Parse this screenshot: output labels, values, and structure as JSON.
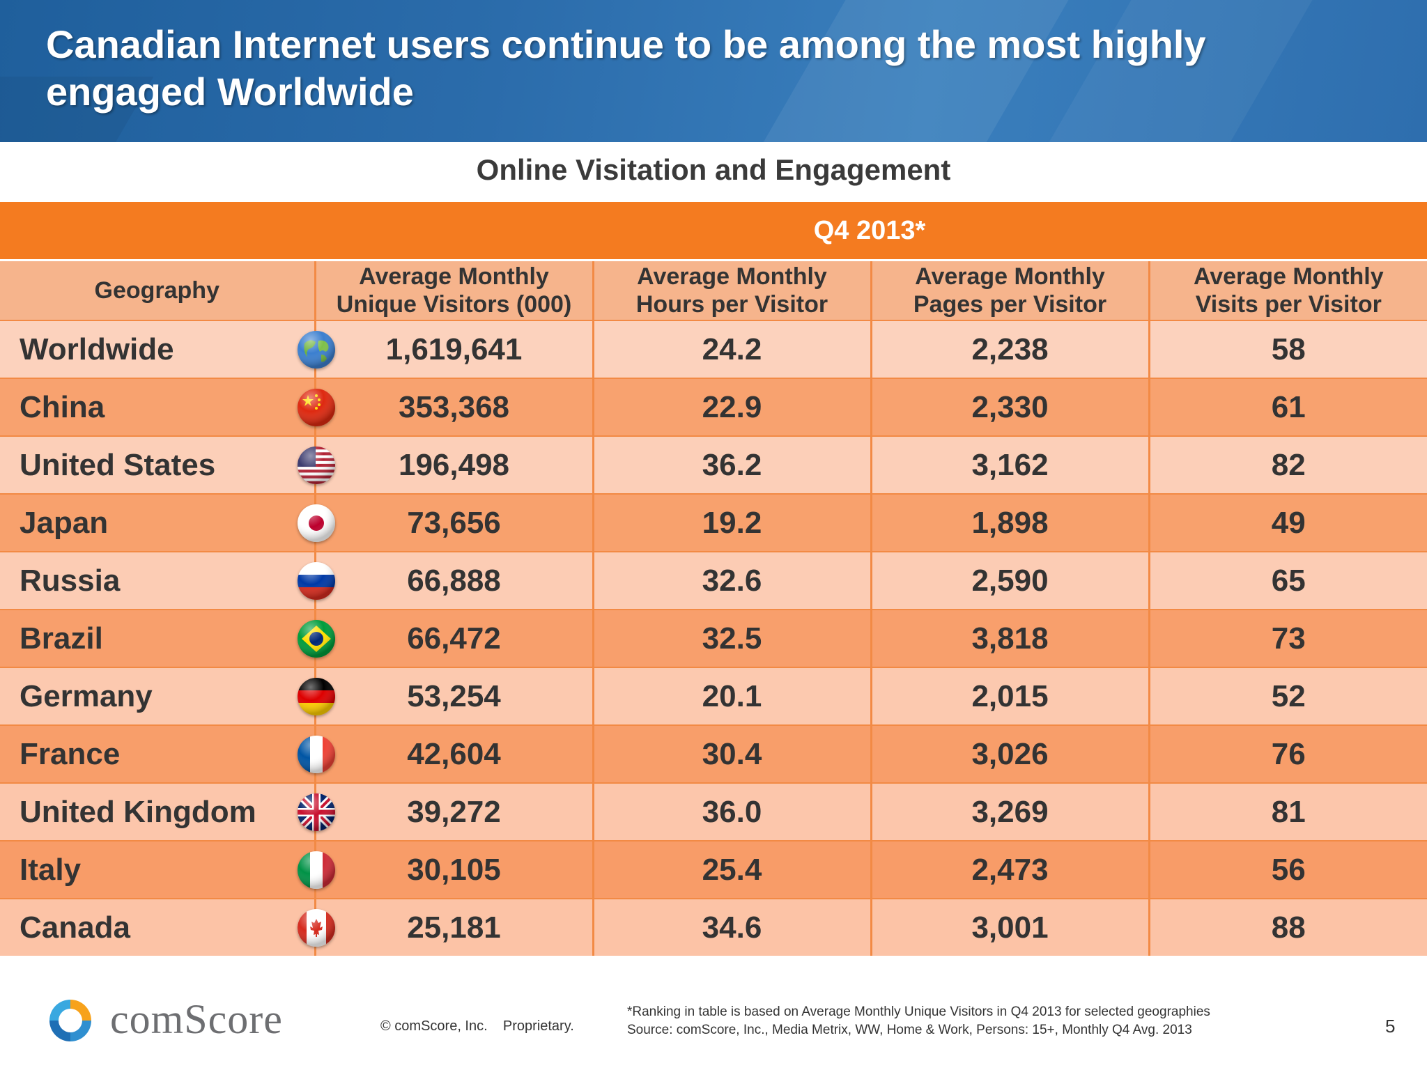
{
  "slide": {
    "title": "Canadian Internet users continue to be among the most highly engaged Worldwide",
    "page_number": "5"
  },
  "chart_data": {
    "type": "table",
    "title": "Online Visitation and Engagement",
    "period": "Q4 2013*",
    "columns": [
      "Geography",
      "Average Monthly Unique Visitors (000)",
      "Average Monthly Hours per Visitor",
      "Average Monthly Pages per Visitor",
      "Average Monthly Visits per Visitor"
    ],
    "rows": [
      {
        "geo": "Worldwide",
        "flag": "globe-icon",
        "visitors": "1,619,641",
        "hours": "24.2",
        "pages": "2,238",
        "visits": "58"
      },
      {
        "geo": "China",
        "flag": "china-flag-icon",
        "visitors": "353,368",
        "hours": "22.9",
        "pages": "2,330",
        "visits": "61"
      },
      {
        "geo": "United States",
        "flag": "us-flag-icon",
        "visitors": "196,498",
        "hours": "36.2",
        "pages": "3,162",
        "visits": "82"
      },
      {
        "geo": "Japan",
        "flag": "japan-flag-icon",
        "visitors": "73,656",
        "hours": "19.2",
        "pages": "1,898",
        "visits": "49"
      },
      {
        "geo": "Russia",
        "flag": "russia-flag-icon",
        "visitors": "66,888",
        "hours": "32.6",
        "pages": "2,590",
        "visits": "65"
      },
      {
        "geo": "Brazil",
        "flag": "brazil-flag-icon",
        "visitors": "66,472",
        "hours": "32.5",
        "pages": "3,818",
        "visits": "73"
      },
      {
        "geo": "Germany",
        "flag": "germany-flag-icon",
        "visitors": "53,254",
        "hours": "20.1",
        "pages": "2,015",
        "visits": "52"
      },
      {
        "geo": "France",
        "flag": "france-flag-icon",
        "visitors": "42,604",
        "hours": "30.4",
        "pages": "3,026",
        "visits": "76"
      },
      {
        "geo": "United Kingdom",
        "flag": "uk-flag-icon",
        "visitors": "39,272",
        "hours": "36.0",
        "pages": "3,269",
        "visits": "81"
      },
      {
        "geo": "Italy",
        "flag": "italy-flag-icon",
        "visitors": "30,105",
        "hours": "25.4",
        "pages": "2,473",
        "visits": "56"
      },
      {
        "geo": "Canada",
        "flag": "canada-flag-icon",
        "visitors": "25,181",
        "hours": "34.6",
        "pages": "3,001",
        "visits": "88"
      }
    ]
  },
  "colors": {
    "header_blue": "#2b6cab",
    "band_orange": "#f47b20",
    "row_light": "#fcd2bd",
    "row_dark": "#f8a370",
    "text_dark": "#333333"
  },
  "footer": {
    "logo_text": "comScore",
    "copyright": "© comScore, Inc.",
    "proprietary": "Proprietary.",
    "footnote_1": "*Ranking in table is based on Average Monthly Unique Visitors in Q4 2013 for selected geographies",
    "footnote_2": "Source: comScore, Inc., Media Metrix, WW, Home & Work, Persons: 15+, Monthly Q4 Avg. 2013"
  }
}
